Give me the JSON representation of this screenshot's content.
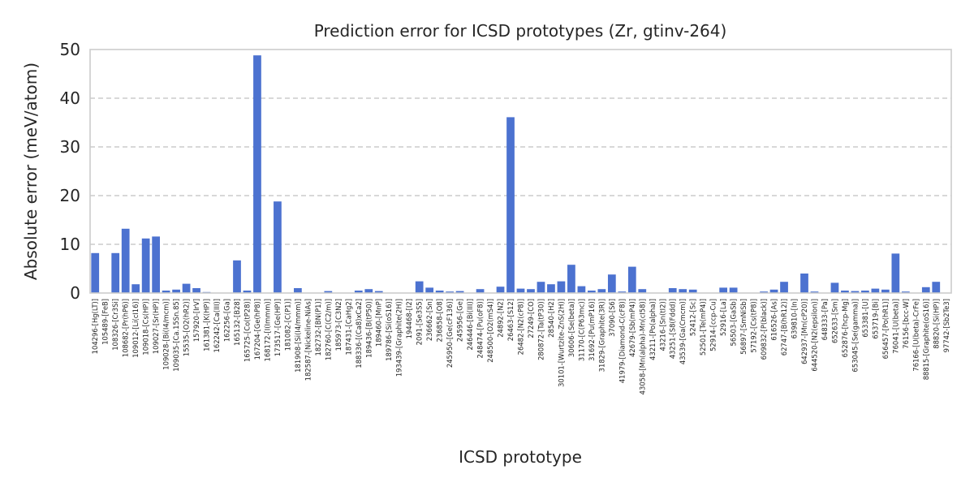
{
  "chart_data": {
    "type": "bar",
    "title": "Prediction error for ICSD prototypes (Zr, gtinv-264)",
    "xlabel": "ICSD prototype",
    "ylabel": "Absolute error (meV/atom)",
    "ylim": [
      0,
      50
    ],
    "yticks": [
      0,
      10,
      20,
      30,
      40,
      50
    ],
    "grid": "y-dashed",
    "bar_color": "#4c72d0",
    "categories": [
      "104296-[Hg(LT)]",
      "105489-[FeB]",
      "108326-[Cr3Si]",
      "108682-[Pr(hP6)]",
      "109012-[Li(cI16)]",
      "109018-[Cs(HP)]",
      "109027-[Sr(HP)]",
      "109028-[Bi(I4/mcm)]",
      "109035-[Ca.15Sn.85]",
      "15535-[O2(hR2)]",
      "157920-[IrV]",
      "161381-[K(HP)]",
      "162242-[Ca(III)]",
      "162256-[Ga]",
      "165132-[B28]",
      "165725-[Co(tP28)]",
      "167204-[Ge(hP8)]",
      "168172-[I(Immm)]",
      "173517-[Ge(HP)]",
      "181082-[C(P1)]",
      "181908-[Si(I4/mmm)]",
      "182587-[Nickeline-NiAs]",
      "182732-[BN(P1)]",
      "182760-[C(C2/m)]",
      "185973-[C3N2]",
      "187431-[CaHg2]",
      "188336-[(Ca8)xCa2]",
      "189436-[B(tP50)]",
      "189460-[MnP]",
      "189786-[Si(oS16)]",
      "193439-[Graphite(2H)]",
      "194468-[I2]",
      "2091-[Se3S5]",
      "236662-[Sn]",
      "236858-[O8]",
      "245950-[Ge(cF136)]",
      "245956-[Ge]",
      "246446-[Bi(III)]",
      "248474-[Pu(oF8)]",
      "248500-[O2(mS4)]",
      "24892-[N2]",
      "26463-[S12]",
      "26482-[N2(cP8)]",
      "27249-[CO]",
      "280872-[Ta(tP30)]",
      "28540-[H2]",
      "30101-[Wurtzite-ZnS(2H)]",
      "30606-[Se(beta)]",
      "31170-[C(P63mc)]",
      "31692-[Pu(mP16)]",
      "31829-[Graphite(3R)]",
      "37090-[S6]",
      "41979-[Diamond-C(cF8)]",
      "42679-[Sb(mP4)]",
      "43058-[Mn(alpha)-Mn(cI58)]",
      "43211-[Po(alpha)]",
      "43216-[Sn(tI2)]",
      "43251-[S8(Fddd)]",
      "43539-[Ga(Cmcm)]",
      "52412-[Sc]",
      "52501-[Te(mP4)]",
      "52914-[ccp-Cu]",
      "52916-[La]",
      "56503-[GaSb]",
      "56897-[SmNiSb]",
      "57192-[Cs(tP8)]",
      "609832-[P(black)]",
      "616526-[As]",
      "62747-[B(hR12)]",
      "639810-[In]",
      "642937-[Mn(cP20)]",
      "644520-[N2(epsilon)]",
      "648333-[Pa]",
      "652633-[Sm]",
      "652876-[hcp-Mg]",
      "653045-[Se(gamma)]",
      "653381-[U]",
      "653719-[Bi]",
      "656457-[Po(hR1)]",
      "76041-[U(beta)]",
      "76156-[bcc-W]",
      "76166-[U(beta)-CrFe]",
      "88815-[Graphite(oS16)]",
      "88820-[Si(HP)]",
      "97742-[Sb2Te3]"
    ],
    "values": [
      8.2,
      0.0,
      8.2,
      13.2,
      1.8,
      11.2,
      11.6,
      0.5,
      0.7,
      1.9,
      1.0,
      0.2,
      0.0,
      0.0,
      6.7,
      0.5,
      48.8,
      0.0,
      18.8,
      0.0,
      1.0,
      0.0,
      0.0,
      0.4,
      0.0,
      0.0,
      0.5,
      0.8,
      0.4,
      0.0,
      0.0,
      0.0,
      2.4,
      1.1,
      0.5,
      0.3,
      0.4,
      0.0,
      0.8,
      0.0,
      1.3,
      36.1,
      0.9,
      0.8,
      2.3,
      1.8,
      2.4,
      5.8,
      1.4,
      0.5,
      0.8,
      3.8,
      0.3,
      5.4,
      0.8,
      0.0,
      0.0,
      1.0,
      0.8,
      0.7,
      0.0,
      0.0,
      1.1,
      1.1,
      0.0,
      0.0,
      0.3,
      0.7,
      2.3,
      0.0,
      4.0,
      0.3,
      0.0,
      2.1,
      0.5,
      0.4,
      0.5,
      0.9,
      0.7,
      8.1,
      0.3,
      0.0,
      1.2,
      2.3,
      0.0
    ]
  }
}
